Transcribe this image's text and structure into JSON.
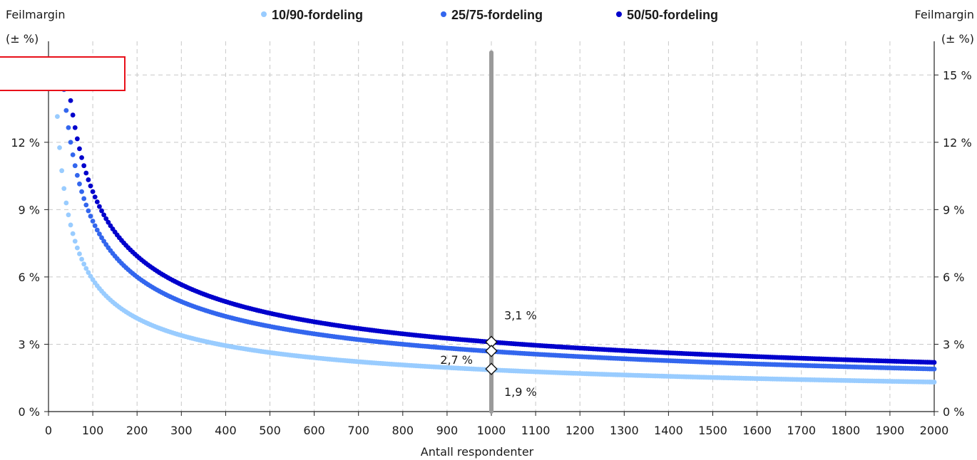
{
  "chart_data": {
    "type": "scatter",
    "title": "",
    "xlabel": "Antall respondenter",
    "ylabel_left": [
      "Feilmargin",
      "(± %)"
    ],
    "ylabel_right": [
      "Feilmargin",
      "(± %)"
    ],
    "xlim": [
      0,
      2000
    ],
    "ylim": [
      0,
      16.5
    ],
    "x_ticks": [
      "0",
      "100",
      "200",
      "300",
      "400",
      "500",
      "600",
      "700",
      "800",
      "900",
      "1000",
      "1100",
      "1200",
      "1300",
      "1400",
      "1500",
      "1600",
      "1700",
      "1800",
      "1900",
      "2000"
    ],
    "y_ticks_left": [
      "0 %",
      "3 %",
      "6 %",
      "9 %",
      "12 %"
    ],
    "y_ticks_right": [
      "0 %",
      "3 %",
      "6 %",
      "9 %",
      "12 %",
      "15 %"
    ],
    "grid": true,
    "legend_position": "top",
    "x_sampling": {
      "start": 20,
      "end": 2000,
      "step": 5
    },
    "series": [
      {
        "name": "10/90-fordeling",
        "p": 0.1,
        "color": "#99ccff"
      },
      {
        "name": "25/75-fordeling",
        "p": 0.25,
        "color": "#3366ee"
      },
      {
        "name": "50/50-fordeling",
        "p": 0.5,
        "color": "#0000cc"
      }
    ],
    "reference_line": {
      "x": 1000,
      "y_top": 16.0,
      "color": "#9a9a9a"
    },
    "annotations": [
      {
        "x": 1000,
        "y": 3.1,
        "label": "3,1 %",
        "label_position": "above-right"
      },
      {
        "x": 1000,
        "y": 2.7,
        "label": "2,7 %",
        "label_position": "left"
      },
      {
        "x": 1000,
        "y": 1.9,
        "label": "1,9 %",
        "label_position": "below-right"
      }
    ]
  },
  "overlay_box": {
    "border_color": "#e8101a"
  }
}
